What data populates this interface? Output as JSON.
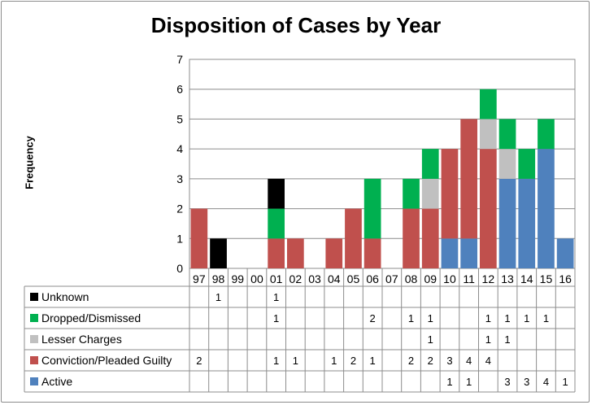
{
  "chart_data": {
    "type": "bar",
    "stacked": true,
    "title": "Disposition of Cases by Year",
    "xlabel": "",
    "ylabel": "Frequency",
    "ylim": [
      0,
      7
    ],
    "yticks": [
      0,
      1,
      2,
      3,
      4,
      5,
      6,
      7
    ],
    "grid": true,
    "legend_placement": "data-table-left",
    "categories": [
      "97",
      "98",
      "99",
      "00",
      "01",
      "02",
      "03",
      "04",
      "05",
      "06",
      "07",
      "08",
      "09",
      "10",
      "11",
      "12",
      "13",
      "14",
      "15",
      "16"
    ],
    "series": [
      {
        "name": "Active",
        "color": "#4f81bd",
        "values": [
          0,
          0,
          0,
          0,
          0,
          0,
          0,
          0,
          0,
          0,
          0,
          0,
          0,
          1,
          1,
          0,
          3,
          3,
          4,
          1
        ]
      },
      {
        "name": "Conviction/Pleaded Guilty",
        "color": "#c0504d",
        "values": [
          2,
          0,
          0,
          0,
          1,
          1,
          0,
          1,
          2,
          1,
          0,
          2,
          2,
          3,
          4,
          4,
          0,
          0,
          0,
          0
        ]
      },
      {
        "name": "Lesser Charges",
        "color": "#c0c0c0",
        "values": [
          0,
          0,
          0,
          0,
          0,
          0,
          0,
          0,
          0,
          0,
          0,
          0,
          1,
          0,
          0,
          1,
          1,
          0,
          0,
          0
        ]
      },
      {
        "name": "Dropped/Dismissed",
        "color": "#00b050",
        "values": [
          0,
          0,
          0,
          0,
          1,
          0,
          0,
          0,
          0,
          2,
          0,
          1,
          1,
          0,
          0,
          1,
          1,
          1,
          1,
          0
        ]
      },
      {
        "name": "Unknown",
        "color": "#000000",
        "values": [
          0,
          1,
          0,
          0,
          1,
          0,
          0,
          0,
          0,
          0,
          0,
          0,
          0,
          0,
          0,
          0,
          0,
          0,
          0,
          0
        ]
      }
    ],
    "table_rows": [
      "Unknown",
      "Dropped/Dismissed",
      "Lesser Charges",
      "Conviction/Pleaded Guilty",
      "Active"
    ]
  }
}
